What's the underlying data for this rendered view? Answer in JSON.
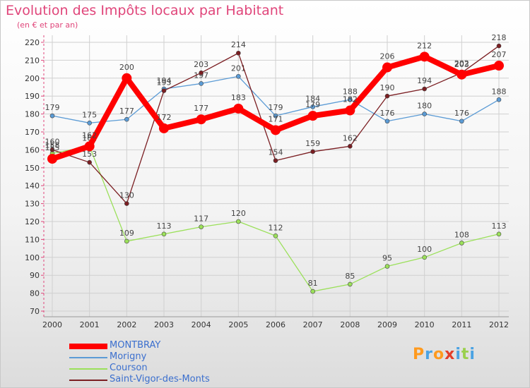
{
  "chart_data": {
    "type": "line",
    "title": "Evolution des Impôts locaux par Habitant",
    "subtitle": "(en € et par an)",
    "xlabel": "",
    "ylabel": "",
    "ylim": [
      70,
      220
    ],
    "yticks": [
      70,
      80,
      90,
      100,
      110,
      120,
      130,
      140,
      150,
      160,
      170,
      180,
      190,
      200,
      210,
      220
    ],
    "categories": [
      "2000",
      "2001",
      "2002",
      "2003",
      "2004",
      "2005",
      "2006",
      "2007",
      "2008",
      "2009",
      "2010",
      "2011",
      "2012"
    ],
    "grid": true,
    "legend_position": "bottom-left",
    "series": [
      {
        "name": "Morigny",
        "color": "#5b9bd5",
        "values": [
          179,
          175,
          177,
          194,
          197,
          201,
          179,
          184,
          188,
          176,
          180,
          176,
          188
        ],
        "labels": [
          "179",
          "175",
          "177",
          "194",
          "197",
          "201",
          "179",
          "184",
          "188",
          "176",
          "180",
          "176",
          "188"
        ]
      },
      {
        "name": "Courson",
        "color": "#9be05a",
        "values": [
          158,
          162,
          109,
          113,
          117,
          120,
          112,
          81,
          85,
          95,
          100,
          108,
          113
        ],
        "labels": [
          "158",
          "162",
          "109",
          "113",
          "117",
          "120",
          "112",
          "81",
          "85",
          "95",
          "100",
          "108",
          "113"
        ]
      },
      {
        "name": "Saint-Vigor-des-Monts",
        "color": "#7b1e22",
        "values": [
          160,
          153,
          130,
          193,
          203,
          214,
          154,
          159,
          162,
          190,
          194,
          203,
          218
        ],
        "labels": [
          "160",
          "153",
          "130",
          "193",
          "203",
          "214",
          "154",
          "159",
          "162",
          "190",
          "194",
          "203",
          "218"
        ]
      },
      {
        "name": "MONTBRAY",
        "color": "#ff0000",
        "values": [
          155,
          162,
          200,
          172,
          177,
          183,
          171,
          179,
          182,
          206,
          212,
          202,
          207
        ],
        "labels": [
          "155",
          "162",
          "200",
          "172",
          "177",
          "183",
          "171",
          "179",
          "182",
          "206",
          "212",
          "202",
          "207"
        ]
      }
    ],
    "legend": [
      "MONTBRAY",
      "Morigny",
      "Courson",
      "Saint-Vigor-des-Monts"
    ]
  },
  "branding": {
    "logo_text": "Proxiti",
    "logo_colors": [
      "#ff9a1e",
      "#4ba3e3",
      "#ff9a1e",
      "#e23d28",
      "#4ba3e3",
      "#9bd04c",
      "#4ba3e3"
    ]
  }
}
